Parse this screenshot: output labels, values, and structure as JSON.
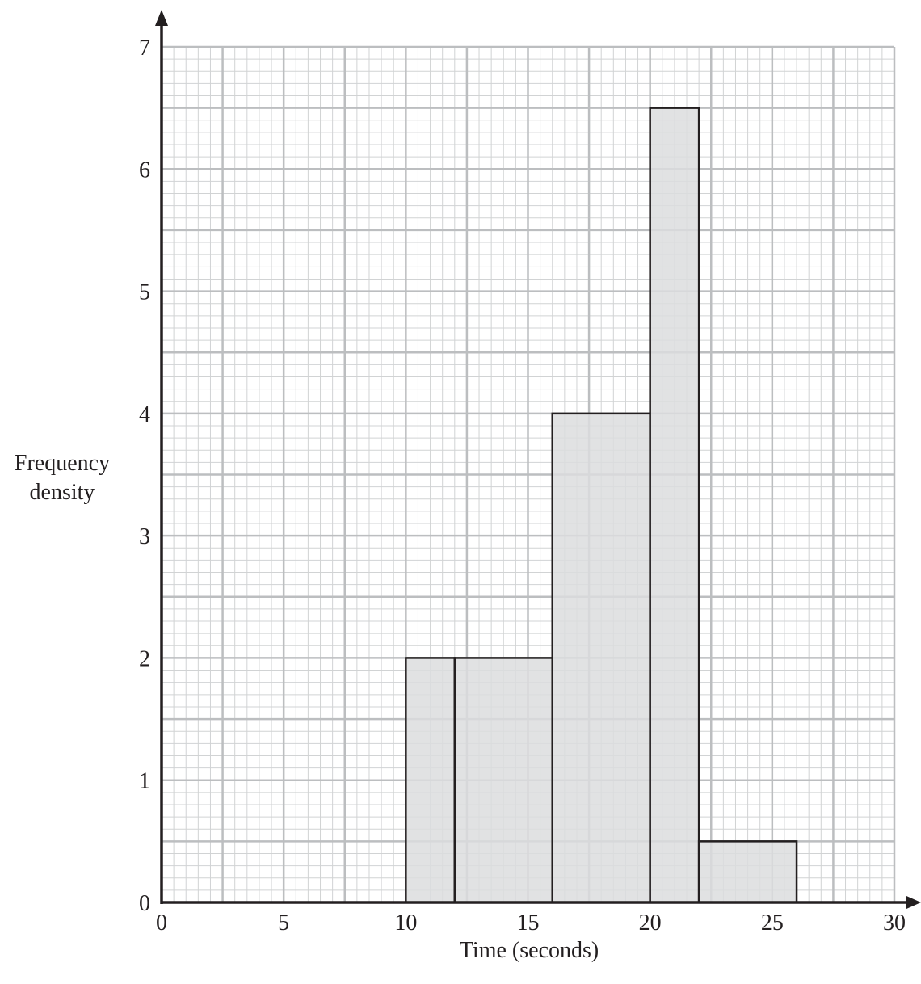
{
  "chart_data": {
    "type": "histogram",
    "title": "",
    "xlabel": "Time (seconds)",
    "ylabel_lines": [
      "Frequency",
      "density"
    ],
    "xlim": [
      0,
      30
    ],
    "ylim": [
      0,
      7
    ],
    "x_ticks": [
      0,
      5,
      10,
      15,
      20,
      25,
      30
    ],
    "y_ticks": [
      0,
      1,
      2,
      3,
      4,
      5,
      6,
      7
    ],
    "bars": [
      {
        "x_start": 10,
        "x_end": 12,
        "value": 2
      },
      {
        "x_start": 12,
        "x_end": 16,
        "value": 2
      },
      {
        "x_start": 16,
        "x_end": 20,
        "value": 4
      },
      {
        "x_start": 20,
        "x_end": 22,
        "value": 6.5
      },
      {
        "x_start": 22,
        "x_end": 26,
        "value": 0.5
      }
    ],
    "grid": true,
    "colors": {
      "bar_fill": "#dcddde",
      "bar_stroke": "#231f20",
      "major_grid": "#bcbec0",
      "minor_grid": "#d1d3d4",
      "axis": "#231f20"
    }
  }
}
